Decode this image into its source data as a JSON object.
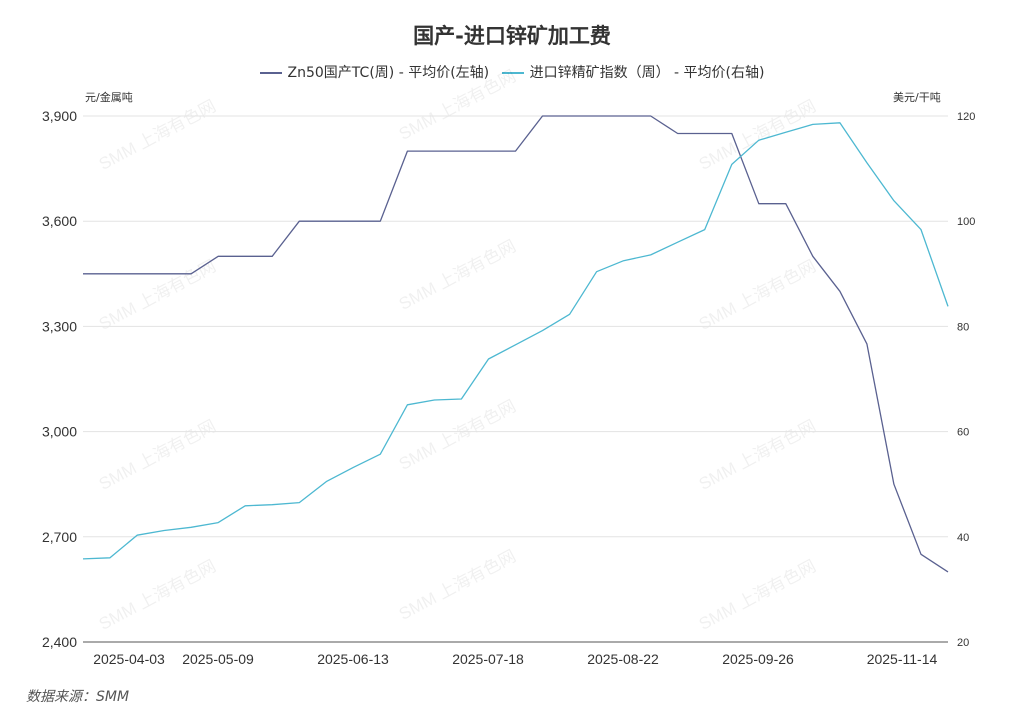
{
  "title": "国产-进口锌矿加工费",
  "legend": [
    {
      "label": "Zn50国产TC(周) - 平均价(左轴)",
      "color": "#5a6190"
    },
    {
      "label": "进口锌精矿指数（周） - 平均价(右轴)",
      "color": "#4db8d1"
    }
  ],
  "left_unit": "元/金属吨",
  "right_unit": "美元/干吨",
  "watermark": "SMM 上海有色网",
  "source": "数据来源：SMM",
  "chart_data": {
    "type": "line",
    "title": "国产-进口锌矿加工费",
    "x_tick_labels": [
      "2025-04-03",
      "2025-05-09",
      "2025-06-13",
      "2025-07-18",
      "2025-08-22",
      "2025-09-26",
      "2025-11-14"
    ],
    "y_left": {
      "unit": "元/金属吨",
      "ylim": [
        2400,
        3900
      ],
      "ticks": [
        "2,400",
        "2,700",
        "3,000",
        "3,300",
        "3,600",
        "3,900"
      ]
    },
    "y_right": {
      "unit": "美元/干吨",
      "ylim": [
        20,
        120
      ],
      "ticks": [
        "20",
        "40",
        "60",
        "80",
        "100",
        "120"
      ]
    },
    "grid": "horizontal",
    "legend_position": "top-center",
    "series": [
      {
        "name": "Zn50国产TC(周) - 平均价(左轴)",
        "axis": "left",
        "color": "#5a6190",
        "values": [
          3450,
          3450,
          3450,
          3450,
          3450,
          3500,
          3500,
          3500,
          3600,
          3600,
          3600,
          3600,
          3800,
          3800,
          3800,
          3800,
          3800,
          3900,
          3900,
          3900,
          3900,
          3900,
          3850,
          3850,
          3850,
          3650,
          3650,
          3500,
          3400,
          3250,
          2850,
          2650,
          2600
        ]
      },
      {
        "name": "进口锌精矿指数（周） - 平均价(右轴)",
        "axis": "right",
        "color": "#4db8d1",
        "values": [
          35.8,
          36.0,
          40.3,
          41.2,
          41.8,
          42.7,
          45.9,
          46.1,
          46.5,
          50.5,
          53.2,
          55.7,
          65.1,
          66.0,
          66.2,
          73.8,
          76.5,
          79.2,
          82.3,
          90.4,
          92.5,
          93.6,
          96.0,
          98.4,
          110.8,
          115.4,
          116.9,
          118.4,
          118.7,
          111.1,
          103.9,
          98.4,
          83.8
        ]
      }
    ]
  }
}
